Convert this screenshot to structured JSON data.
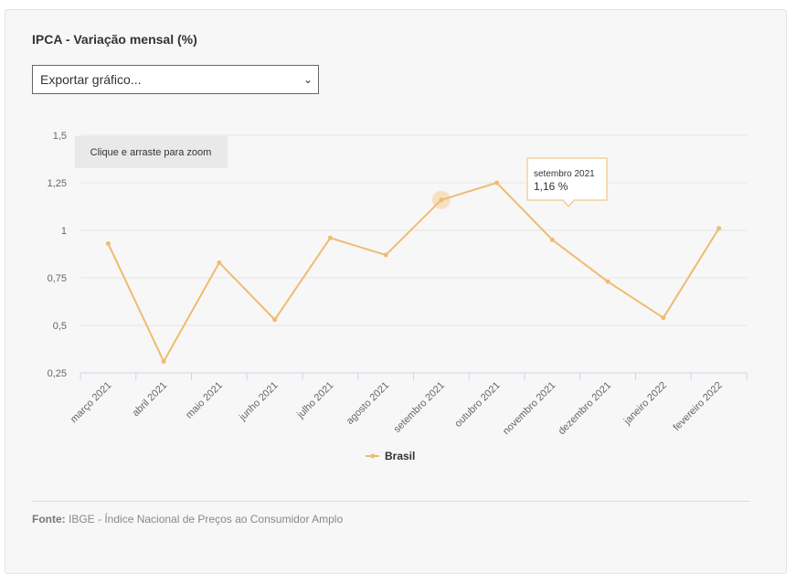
{
  "title": "IPCA - Variação mensal (%)",
  "export_select": {
    "selected": "Exportar gráfico..."
  },
  "zoom_hint": "Clique e arraste para zoom",
  "tooltip": {
    "label": "setembro 2021",
    "value": "1,16 %"
  },
  "source": {
    "label": "Fonte:",
    "text": "IBGE - Índice Nacional de Preços ao Consumidor Amplo"
  },
  "colors": {
    "series": "#f0bb71",
    "highlight": "#f6d9b3",
    "grid": "#e6e6e6",
    "axis": "#ccd6eb"
  },
  "chart_data": {
    "type": "line",
    "categories": [
      "março 2021",
      "abril 2021",
      "maio 2021",
      "junho 2021",
      "julho 2021",
      "agosto 2021",
      "setembro 2021",
      "outubro 2021",
      "novembro 2021",
      "dezembro 2021",
      "janeiro 2022",
      "fevereiro 2022"
    ],
    "series": [
      {
        "name": "Brasil",
        "values": [
          0.93,
          0.31,
          0.83,
          0.53,
          0.96,
          0.87,
          1.16,
          1.25,
          0.95,
          0.73,
          0.54,
          1.01
        ]
      }
    ],
    "ylim": [
      0.25,
      1.5
    ],
    "yticks": [
      "0,25",
      "0,5",
      "0,75",
      "1",
      "1,25",
      "1,5"
    ],
    "grid": true,
    "legend": "bottom-center",
    "highlight_index": 6
  }
}
